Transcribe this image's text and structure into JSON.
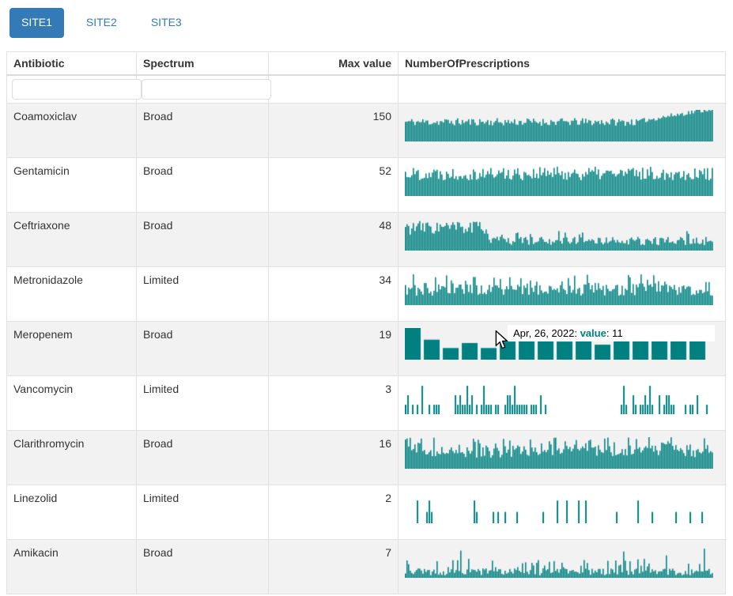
{
  "tabs": {
    "items": [
      {
        "label": "SITE1",
        "active": true
      },
      {
        "label": "SITE2",
        "active": false
      },
      {
        "label": "SITE3",
        "active": false
      }
    ]
  },
  "table": {
    "columns": [
      {
        "label": "Antibiotic"
      },
      {
        "label": "Spectrum"
      },
      {
        "label": "Max value"
      },
      {
        "label": "NumberOfPrescriptions"
      }
    ],
    "filter_inputs": [
      {
        "column": "Antibiotic",
        "value": "",
        "placeholder": ""
      },
      {
        "column": "Spectrum",
        "value": "",
        "placeholder": ""
      }
    ],
    "rows": [
      {
        "antibiotic": "Coamoxiclav",
        "spectrum": "Broad",
        "max_value": "150",
        "spark": {
          "kind": "dense",
          "seed": 11,
          "segments": [
            {
              "until": 0.75,
              "lo": 0.5,
              "hi": 0.74
            },
            {
              "until": 1,
              "lo": 0.55,
              "hi": 0.7,
              "ramp": 0.97
            }
          ]
        }
      },
      {
        "antibiotic": "Gentamicin",
        "spectrum": "Broad",
        "max_value": "52",
        "spark": {
          "kind": "dense",
          "seed": 22,
          "segments": [
            {
              "until": 1,
              "lo": 0.5,
              "hi": 0.93
            }
          ]
        }
      },
      {
        "antibiotic": "Ceftriaxone",
        "spectrum": "Broad",
        "max_value": "48",
        "spark": {
          "kind": "dense",
          "seed": 33,
          "segments": [
            {
              "until": 0.27,
              "lo": 0.5,
              "hi": 0.95
            },
            {
              "until": 1,
              "lo": 0.17,
              "hi": 0.44,
              "spikes": [
                {
                  "p": 0.05,
                  "lo": 0.5,
                  "hi": 0.62
                }
              ]
            }
          ]
        }
      },
      {
        "antibiotic": "Metronidazole",
        "spectrum": "Limited",
        "max_value": "34",
        "spark": {
          "kind": "dense",
          "seed": 44,
          "segments": [
            {
              "until": 1,
              "lo": 0.3,
              "hi": 0.7,
              "spikes": [
                {
                  "p": 0.13,
                  "lo": 0.72,
                  "hi": 0.98
                }
              ]
            }
          ]
        }
      },
      {
        "antibiotic": "Meropenem",
        "spectrum": "Broad",
        "max_value": "19",
        "spark": {
          "kind": "values",
          "max": 19,
          "barWidth": 20,
          "gap": 4,
          "values": [
            19,
            12,
            7,
            10,
            7,
            11,
            15,
            15,
            11,
            15,
            9,
            15,
            14,
            17,
            15,
            16
          ]
        }
      },
      {
        "antibiotic": "Vancomycin",
        "spectrum": "Limited",
        "max_value": "3",
        "spark": {
          "kind": "sparse",
          "seed": 66,
          "maxLevel": 3,
          "hFrac": 0.9,
          "levels": [
            {
              "v": 1,
              "p": 0.55
            },
            {
              "v": 2,
              "p": 0.3
            },
            {
              "v": 3,
              "p": 0.15
            }
          ],
          "segments": [
            {
              "until": 0.12,
              "density": 0.5
            },
            {
              "until": 0.16,
              "density": 0.08
            },
            {
              "until": 0.46,
              "density": 0.6
            },
            {
              "until": 0.7,
              "density": 0.02
            },
            {
              "until": 0.97,
              "density": 0.55
            },
            {
              "until": 1,
              "density": 0.15
            }
          ]
        }
      },
      {
        "antibiotic": "Clarithromycin",
        "spectrum": "Broad",
        "max_value": "16",
        "spark": {
          "kind": "dense",
          "seed": 77,
          "segments": [
            {
              "until": 1,
              "lo": 0.35,
              "hi": 0.75,
              "spikes": [
                {
                  "p": 0.2,
                  "lo": 0.75,
                  "hi": 1
                }
              ]
            }
          ]
        }
      },
      {
        "antibiotic": "Linezolid",
        "spectrum": "Limited",
        "max_value": "2",
        "spark": {
          "kind": "sparse",
          "seed": 88,
          "maxLevel": 2,
          "hFrac": 0.72,
          "levels": [
            {
              "v": 1,
              "p": 0.75
            },
            {
              "v": 2,
              "p": 0.25
            }
          ],
          "segments": [
            {
              "until": 1,
              "density": 0.16
            }
          ]
        }
      },
      {
        "antibiotic": "Amikacin",
        "spectrum": "Broad",
        "max_value": "7",
        "spark": {
          "kind": "dense",
          "seed": 99,
          "segments": [
            {
              "until": 1,
              "lo": 0.08,
              "hi": 0.3,
              "spikes": [
                {
                  "p": 0.18,
                  "lo": 0.32,
                  "hi": 0.6
                },
                {
                  "p": 0.03,
                  "lo": 0.7,
                  "hi": 1
                }
              ]
            }
          ]
        }
      }
    ]
  },
  "tooltip": {
    "prefix": "Apr, 26, 2022: ",
    "label": "value",
    "suffix": ": 11"
  },
  "colors": {
    "accent_blue": "#337ab7",
    "spark_teal": "#008080",
    "row_stripe": "#f2f2f2",
    "border": "#dddddd",
    "tooltip_label": "#008080"
  },
  "chart_data": [
    {
      "type": "bar",
      "series_name": "Coamoxiclav NumberOfPrescriptions",
      "max": 150,
      "pattern": "dense daily bars, steady noisy band ~50-75% of max, rising to max over final ~20%"
    },
    {
      "type": "bar",
      "series_name": "Gentamicin NumberOfPrescriptions",
      "max": 52,
      "pattern": "dense uniform noisy band 50-93% of max across full range"
    },
    {
      "type": "bar",
      "series_name": "Ceftriaxone NumberOfPrescriptions",
      "max": 48,
      "pattern": "high band 50-95% for first ~27%, then drops to low band 17-44%"
    },
    {
      "type": "bar",
      "series_name": "Metronidazole NumberOfPrescriptions",
      "max": 34,
      "pattern": "band 30-70% with frequent spikes toward 100%"
    },
    {
      "type": "bar",
      "series_name": "Meropenem NumberOfPrescriptions",
      "max": 19,
      "values": [
        19,
        12,
        7,
        10,
        7,
        11,
        15,
        15,
        11,
        15,
        9,
        15,
        14,
        17,
        15,
        16
      ],
      "highlighted_point": {
        "date": "Apr, 26, 2022",
        "value": 11
      }
    },
    {
      "type": "bar",
      "series_name": "Vancomycin NumberOfPrescriptions",
      "max": 3,
      "pattern": "sparse bars of value 1-3 in two clusters (0-46% and 70-100%) with an empty gap between"
    },
    {
      "type": "bar",
      "series_name": "Clarithromycin NumberOfPrescriptions",
      "max": 16,
      "pattern": "band 35-75% with many spikes to 100%"
    },
    {
      "type": "bar",
      "series_name": "Linezolid NumberOfPrescriptions",
      "max": 2,
      "pattern": "very sparse scattered bars of value 1 or 2"
    },
    {
      "type": "bar",
      "series_name": "Amikacin NumberOfPrescriptions",
      "max": 7,
      "pattern": "low band 8-30% with spikes to ~60%, rare spike to 100%"
    }
  ]
}
